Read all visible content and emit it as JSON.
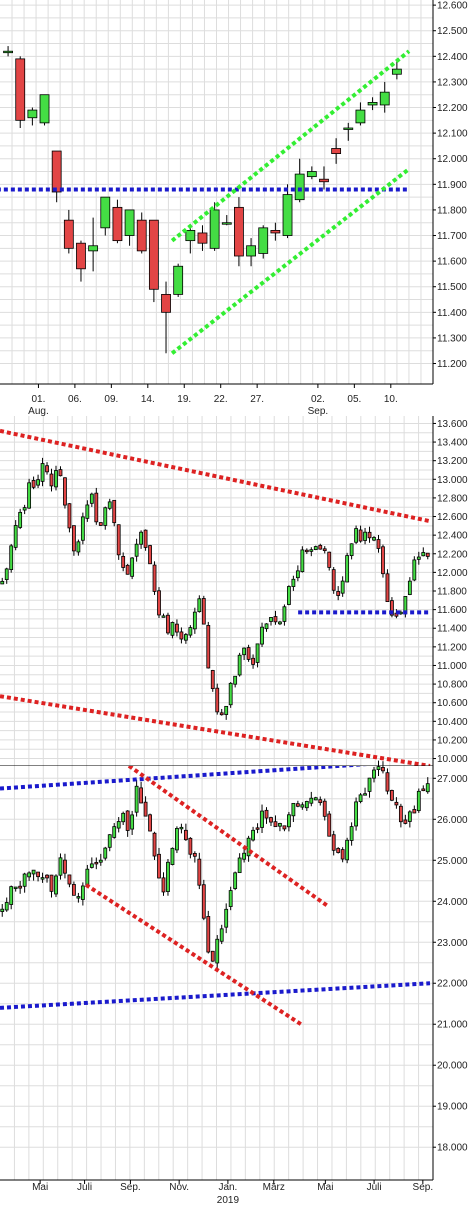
{
  "colors": {
    "up": "#44dd44",
    "down": "#e24545",
    "wick": "#000000",
    "grid": "#dddddd",
    "axis": "#000000",
    "trend_green": "#33ee33",
    "trend_blue": "#1a1acc",
    "trend_red": "#dd2222"
  },
  "chart_data": [
    {
      "type": "candlestick",
      "grid": true,
      "ylim": [
        11.12,
        12.62
      ],
      "y_ticks": [
        "11.200",
        "11.300",
        "11.400",
        "11.500",
        "11.600",
        "11.700",
        "11.800",
        "11.900",
        "12.000",
        "12.100",
        "12.200",
        "12.300",
        "12.400",
        "12.500",
        "12.600"
      ],
      "x_ticks": [
        {
          "i": 2.5,
          "label": "01.",
          "sub": "Aug."
        },
        {
          "i": 5.5,
          "label": "06.",
          "sub": ""
        },
        {
          "i": 8.5,
          "label": "09.",
          "sub": ""
        },
        {
          "i": 11.5,
          "label": "14.",
          "sub": ""
        },
        {
          "i": 14.5,
          "label": "19.",
          "sub": ""
        },
        {
          "i": 17.5,
          "label": "22.",
          "sub": ""
        },
        {
          "i": 20.5,
          "label": "27.",
          "sub": ""
        },
        {
          "i": 25.5,
          "label": "02.",
          "sub": "Sep."
        },
        {
          "i": 28.5,
          "label": "05.",
          "sub": ""
        },
        {
          "i": 31.5,
          "label": "10.",
          "sub": ""
        }
      ],
      "candles": [
        [
          12.42,
          12.44,
          12.4,
          12.42
        ],
        [
          12.39,
          12.4,
          12.12,
          12.15
        ],
        [
          12.16,
          12.2,
          12.13,
          12.19
        ],
        [
          12.14,
          12.25,
          12.13,
          12.25
        ],
        [
          12.03,
          12.03,
          11.83,
          11.87
        ],
        [
          11.76,
          11.8,
          11.63,
          11.65
        ],
        [
          11.67,
          11.68,
          11.52,
          11.57
        ],
        [
          11.64,
          11.77,
          11.56,
          11.66
        ],
        [
          11.73,
          11.85,
          11.7,
          11.85
        ],
        [
          11.81,
          11.84,
          11.67,
          11.68
        ],
        [
          11.7,
          11.8,
          11.66,
          11.8
        ],
        [
          11.76,
          11.79,
          11.63,
          11.64
        ],
        [
          11.76,
          11.76,
          11.44,
          11.49
        ],
        [
          11.47,
          11.52,
          11.24,
          11.4
        ],
        [
          11.47,
          11.59,
          11.46,
          11.58
        ],
        [
          11.68,
          11.73,
          11.63,
          11.72
        ],
        [
          11.71,
          11.74,
          11.64,
          11.67
        ],
        [
          11.65,
          11.83,
          11.64,
          11.8
        ],
        [
          11.75,
          11.78,
          11.74,
          11.75
        ],
        [
          11.81,
          11.85,
          11.58,
          11.62
        ],
        [
          11.62,
          11.69,
          11.58,
          11.66
        ],
        [
          11.63,
          11.74,
          11.61,
          11.73
        ],
        [
          11.72,
          11.75,
          11.68,
          11.71
        ],
        [
          11.7,
          11.9,
          11.69,
          11.86
        ],
        [
          11.84,
          12.0,
          11.83,
          11.94
        ],
        [
          11.93,
          11.97,
          11.92,
          11.95
        ],
        [
          11.92,
          11.97,
          11.88,
          11.91
        ],
        [
          12.04,
          12.08,
          11.98,
          12.02
        ],
        [
          12.12,
          12.14,
          12.07,
          12.12
        ],
        [
          12.14,
          12.22,
          12.13,
          12.19
        ],
        [
          12.21,
          12.24,
          12.19,
          12.22
        ],
        [
          12.21,
          12.3,
          12.18,
          12.26
        ],
        [
          12.33,
          12.39,
          12.31,
          12.35
        ]
      ],
      "lines": [
        {
          "color": "trend_blue",
          "x": [
            -1.5,
            33.0
          ],
          "y": [
            11.88,
            11.88
          ]
        },
        {
          "color": "trend_green",
          "x": [
            13.5,
            33.0
          ],
          "y": [
            11.68,
            12.42
          ]
        },
        {
          "color": "trend_green",
          "x": [
            13.5,
            33.0
          ],
          "y": [
            11.24,
            11.96
          ]
        }
      ]
    },
    {
      "type": "candlestick",
      "grid": true,
      "ylim": [
        9.92,
        13.68
      ],
      "y_ticks": [
        "10.000",
        "10.200",
        "10.400",
        "10.600",
        "10.800",
        "11.000",
        "11.200",
        "11.400",
        "11.600",
        "11.800",
        "12.000",
        "12.200",
        "12.400",
        "12.600",
        "12.800",
        "13.000",
        "13.200",
        "13.400",
        "13.600"
      ],
      "x_ticks": [
        {
          "i": 0.14,
          "label": "Mai"
        },
        {
          "i": 0.295,
          "label": "Juli"
        },
        {
          "i": 0.455,
          "label": "Sep."
        },
        {
          "i": 0.625,
          "label": "Nov."
        },
        {
          "i": 0.795,
          "label": "Jan."
        },
        {
          "i": 0.955,
          "label": "März"
        },
        {
          "i": 1.135,
          "label": "Mai"
        },
        {
          "i": 1.305,
          "label": "Juli"
        },
        {
          "i": 1.475,
          "label": "Sep."
        }
      ],
      "x_range": [
        0.0,
        1.5
      ],
      "anchors": [
        [
          0.0,
          11.85
        ],
        [
          0.05,
          12.4
        ],
        [
          0.1,
          12.9
        ],
        [
          0.15,
          13.15
        ],
        [
          0.18,
          12.95
        ],
        [
          0.2,
          13.15
        ],
        [
          0.23,
          12.7
        ],
        [
          0.26,
          12.15
        ],
        [
          0.29,
          12.55
        ],
        [
          0.32,
          12.8
        ],
        [
          0.35,
          12.45
        ],
        [
          0.38,
          12.75
        ],
        [
          0.41,
          12.3
        ],
        [
          0.44,
          11.95
        ],
        [
          0.47,
          12.3
        ],
        [
          0.5,
          12.4
        ],
        [
          0.53,
          12.05
        ],
        [
          0.55,
          11.6
        ],
        [
          0.58,
          11.4
        ],
        [
          0.61,
          11.5
        ],
        [
          0.64,
          11.2
        ],
        [
          0.67,
          11.5
        ],
        [
          0.7,
          11.75
        ],
        [
          0.72,
          11.1
        ],
        [
          0.75,
          10.6
        ],
        [
          0.78,
          10.4
        ],
        [
          0.8,
          10.7
        ],
        [
          0.83,
          11.0
        ],
        [
          0.86,
          11.2
        ],
        [
          0.88,
          10.9
        ],
        [
          0.91,
          11.35
        ],
        [
          0.94,
          11.55
        ],
        [
          0.97,
          11.4
        ],
        [
          1.0,
          11.8
        ],
        [
          1.03,
          12.0
        ],
        [
          1.06,
          12.3
        ],
        [
          1.09,
          12.15
        ],
        [
          1.12,
          12.3
        ],
        [
          1.15,
          12.0
        ],
        [
          1.18,
          11.7
        ],
        [
          1.21,
          12.1
        ],
        [
          1.24,
          12.45
        ],
        [
          1.27,
          12.35
        ],
        [
          1.3,
          12.5
        ],
        [
          1.33,
          12.1
        ],
        [
          1.36,
          11.55
        ],
        [
          1.39,
          11.5
        ],
        [
          1.42,
          11.8
        ],
        [
          1.45,
          12.2
        ]
      ],
      "lines": [
        {
          "color": "trend_red",
          "x": [
            0.0,
            1.5
          ],
          "y": [
            13.52,
            12.55
          ]
        },
        {
          "color": "trend_red",
          "x": [
            0.0,
            1.5
          ],
          "y": [
            10.67,
            9.92
          ]
        },
        {
          "color": "trend_blue",
          "x": [
            1.04,
            1.5
          ],
          "y": [
            11.57,
            11.57
          ]
        }
      ]
    },
    {
      "type": "candlestick",
      "grid": true,
      "ylim": [
        17.2,
        27.3
      ],
      "y_ticks": [
        "18.000",
        "19.000",
        "20.000",
        "21.000",
        "22.000",
        "23.000",
        "24.000",
        "25.000",
        "26.000",
        "27.000"
      ],
      "x_ticks": [
        {
          "i": 0.14,
          "label": "Mai",
          "sub": ""
        },
        {
          "i": 0.295,
          "label": "Juli",
          "sub": ""
        },
        {
          "i": 0.455,
          "label": "Sep.",
          "sub": ""
        },
        {
          "i": 0.625,
          "label": "Nov.",
          "sub": ""
        },
        {
          "i": 0.795,
          "label": "Jan.",
          "sub": "2019"
        },
        {
          "i": 0.955,
          "label": "März",
          "sub": ""
        },
        {
          "i": 1.135,
          "label": "Mai",
          "sub": ""
        },
        {
          "i": 1.305,
          "label": "Juli",
          "sub": ""
        },
        {
          "i": 1.475,
          "label": "Sep.",
          "sub": ""
        }
      ],
      "x_range": [
        0.0,
        1.5
      ],
      "anchors": [
        [
          0.0,
          23.8
        ],
        [
          0.05,
          24.3
        ],
        [
          0.1,
          24.6
        ],
        [
          0.15,
          24.7
        ],
        [
          0.18,
          24.3
        ],
        [
          0.21,
          24.9
        ],
        [
          0.24,
          24.3
        ],
        [
          0.27,
          24.0
        ],
        [
          0.3,
          24.6
        ],
        [
          0.33,
          24.9
        ],
        [
          0.36,
          25.3
        ],
        [
          0.39,
          25.5
        ],
        [
          0.42,
          26.0
        ],
        [
          0.45,
          25.9
        ],
        [
          0.48,
          26.7
        ],
        [
          0.51,
          26.2
        ],
        [
          0.54,
          25.1
        ],
        [
          0.57,
          24.4
        ],
        [
          0.6,
          25.3
        ],
        [
          0.63,
          25.9
        ],
        [
          0.66,
          25.2
        ],
        [
          0.69,
          24.8
        ],
        [
          0.71,
          23.6
        ],
        [
          0.74,
          22.3
        ],
        [
          0.77,
          23.3
        ],
        [
          0.8,
          24.0
        ],
        [
          0.83,
          24.8
        ],
        [
          0.86,
          25.3
        ],
        [
          0.89,
          25.9
        ],
        [
          0.92,
          26.1
        ],
        [
          0.95,
          25.8
        ],
        [
          0.98,
          25.8
        ],
        [
          1.01,
          26.2
        ],
        [
          1.04,
          26.4
        ],
        [
          1.07,
          26.5
        ],
        [
          1.1,
          26.6
        ],
        [
          1.13,
          26.0
        ],
        [
          1.16,
          25.3
        ],
        [
          1.19,
          25.1
        ],
        [
          1.22,
          25.8
        ],
        [
          1.25,
          26.4
        ],
        [
          1.28,
          26.7
        ],
        [
          1.31,
          27.3
        ],
        [
          1.34,
          27.0
        ],
        [
          1.37,
          26.5
        ],
        [
          1.4,
          25.9
        ],
        [
          1.43,
          26.1
        ],
        [
          1.46,
          26.5
        ],
        [
          1.5,
          27.0
        ]
      ],
      "lines": [
        {
          "color": "trend_blue",
          "x": [
            0.0,
            1.5
          ],
          "y": [
            26.75,
            27.45
          ]
        },
        {
          "color": "trend_blue",
          "x": [
            0.0,
            1.5
          ],
          "y": [
            21.4,
            22.0
          ]
        },
        {
          "color": "trend_red",
          "x": [
            0.39,
            1.14
          ],
          "y": [
            27.6,
            23.9
          ]
        },
        {
          "color": "trend_red",
          "x": [
            0.3,
            1.05
          ],
          "y": [
            24.4,
            21.0
          ]
        }
      ]
    }
  ]
}
